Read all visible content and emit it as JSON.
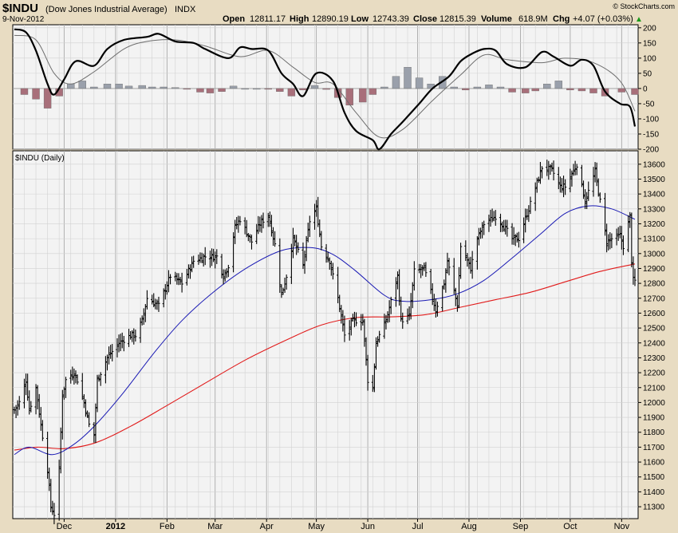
{
  "header": {
    "symbol": "$INDU",
    "name": "(Dow Jones Industrial Average)",
    "exchange": "INDX",
    "date": "9-Nov-2012",
    "open_label": "Open",
    "open": "12811.17",
    "high_label": "High",
    "high": "12890.19",
    "low_label": "Low",
    "low": "12743.39",
    "close_label": "Close",
    "close": "12815.39",
    "volume_label": "Volume",
    "volume": "618.9M",
    "chg_label": "Chg",
    "chg": "+4.07 (+0.03%)",
    "arrow": "▲",
    "watermark": "© StockCharts.com"
  },
  "colors": {
    "panel_bg": "#f3f3f3",
    "frame_bg": "#e8dcc2",
    "grid": "#d2d2d2",
    "price_bars": "#000000",
    "sma_short": "#1a1ab4",
    "sma_long": "#e11a1a",
    "macd_line": "#000000",
    "signal_line": "#6e6e6e",
    "hist_pos": "#9aa0ab",
    "hist_neg": "#a86f7a",
    "arrow": "#1a9a1a"
  },
  "chart_data": [
    {
      "type": "bar",
      "subtype": "macd-histogram-with-lines",
      "ylim": [
        -200,
        210
      ],
      "yticks": [
        200,
        150,
        100,
        50,
        0,
        -50,
        -100,
        -150,
        -200
      ],
      "histogram": [
        [
          "2011-11-07",
          -20
        ],
        [
          "2011-11-14",
          -35
        ],
        [
          "2011-11-21",
          -65
        ],
        [
          "2011-11-28",
          -25
        ],
        [
          "2011-12-05",
          15
        ],
        [
          "2011-12-12",
          25
        ],
        [
          "2011-12-19",
          5
        ],
        [
          "2011-12-27",
          15
        ],
        [
          "2012-01-03",
          15
        ],
        [
          "2012-01-09",
          8
        ],
        [
          "2012-01-17",
          10
        ],
        [
          "2012-01-23",
          5
        ],
        [
          "2012-01-30",
          5
        ],
        [
          "2012-02-06",
          3
        ],
        [
          "2012-02-13",
          -2
        ],
        [
          "2012-02-21",
          -12
        ],
        [
          "2012-02-27",
          -15
        ],
        [
          "2012-03-05",
          -10
        ],
        [
          "2012-03-12",
          8
        ],
        [
          "2012-03-19",
          0
        ],
        [
          "2012-03-26",
          0
        ],
        [
          "2012-04-02",
          -2
        ],
        [
          "2012-04-09",
          -10
        ],
        [
          "2012-04-16",
          -25
        ],
        [
          "2012-04-23",
          -5
        ],
        [
          "2012-04-30",
          10
        ],
        [
          "2012-05-07",
          -3
        ],
        [
          "2012-05-14",
          -30
        ],
        [
          "2012-05-21",
          -55
        ],
        [
          "2012-05-29",
          -45
        ],
        [
          "2012-06-04",
          -20
        ],
        [
          "2012-06-11",
          5
        ],
        [
          "2012-06-18",
          40
        ],
        [
          "2012-06-25",
          70
        ],
        [
          "2012-07-02",
          35
        ],
        [
          "2012-07-09",
          15
        ],
        [
          "2012-07-16",
          40
        ],
        [
          "2012-07-23",
          5
        ],
        [
          "2012-07-30",
          -5
        ],
        [
          "2012-08-06",
          5
        ],
        [
          "2012-08-13",
          12
        ],
        [
          "2012-08-20",
          5
        ],
        [
          "2012-08-27",
          -12
        ],
        [
          "2012-09-04",
          -15
        ],
        [
          "2012-09-10",
          -8
        ],
        [
          "2012-09-17",
          15
        ],
        [
          "2012-09-24",
          25
        ],
        [
          "2012-10-01",
          -5
        ],
        [
          "2012-10-08",
          -8
        ],
        [
          "2012-10-15",
          -15
        ],
        [
          "2012-10-22",
          -25
        ],
        [
          "2012-11-01",
          -12
        ],
        [
          "2012-11-09",
          -20
        ]
      ],
      "macd": [
        [
          "2011-11-01",
          195
        ],
        [
          "2011-11-08",
          185
        ],
        [
          "2011-11-14",
          125
        ],
        [
          "2011-11-21",
          15
        ],
        [
          "2011-11-25",
          -20
        ],
        [
          "2011-12-01",
          30
        ],
        [
          "2011-12-08",
          90
        ],
        [
          "2011-12-19",
          75
        ],
        [
          "2011-12-27",
          130
        ],
        [
          "2012-01-06",
          160
        ],
        [
          "2012-01-20",
          170
        ],
        [
          "2012-01-27",
          180
        ],
        [
          "2012-02-06",
          155
        ],
        [
          "2012-02-17",
          150
        ],
        [
          "2012-02-24",
          130
        ],
        [
          "2012-03-09",
          100
        ],
        [
          "2012-03-16",
          135
        ],
        [
          "2012-03-23",
          130
        ],
        [
          "2012-04-02",
          125
        ],
        [
          "2012-04-10",
          50
        ],
        [
          "2012-04-17",
          15
        ],
        [
          "2012-04-23",
          -25
        ],
        [
          "2012-05-01",
          50
        ],
        [
          "2012-05-11",
          25
        ],
        [
          "2012-05-18",
          -80
        ],
        [
          "2012-05-25",
          -140
        ],
        [
          "2012-06-04",
          -170
        ],
        [
          "2012-06-08",
          -200
        ],
        [
          "2012-06-15",
          -150
        ],
        [
          "2012-06-22",
          -110
        ],
        [
          "2012-07-02",
          -50
        ],
        [
          "2012-07-10",
          0
        ],
        [
          "2012-07-20",
          40
        ],
        [
          "2012-07-27",
          90
        ],
        [
          "2012-08-03",
          115
        ],
        [
          "2012-08-10",
          130
        ],
        [
          "2012-08-17",
          125
        ],
        [
          "2012-08-24",
          80
        ],
        [
          "2012-09-04",
          70
        ],
        [
          "2012-09-14",
          120
        ],
        [
          "2012-09-21",
          105
        ],
        [
          "2012-10-01",
          75
        ],
        [
          "2012-10-08",
          95
        ],
        [
          "2012-10-15",
          75
        ],
        [
          "2012-10-22",
          -10
        ],
        [
          "2012-10-31",
          -50
        ],
        [
          "2012-11-06",
          -60
        ],
        [
          "2012-11-09",
          -125
        ]
      ],
      "signal": [
        [
          "2011-11-01",
          175
        ],
        [
          "2011-11-14",
          160
        ],
        [
          "2011-11-25",
          50
        ],
        [
          "2011-12-05",
          15
        ],
        [
          "2011-12-19",
          55
        ],
        [
          "2012-01-06",
          130
        ],
        [
          "2012-01-20",
          155
        ],
        [
          "2012-02-06",
          160
        ],
        [
          "2012-02-24",
          140
        ],
        [
          "2012-03-16",
          105
        ],
        [
          "2012-04-02",
          125
        ],
        [
          "2012-04-17",
          70
        ],
        [
          "2012-04-30",
          20
        ],
        [
          "2012-05-11",
          15
        ],
        [
          "2012-05-25",
          -80
        ],
        [
          "2012-06-08",
          -160
        ],
        [
          "2012-06-22",
          -135
        ],
        [
          "2012-07-10",
          -40
        ],
        [
          "2012-07-27",
          45
        ],
        [
          "2012-08-10",
          110
        ],
        [
          "2012-08-24",
          95
        ],
        [
          "2012-09-14",
          85
        ],
        [
          "2012-09-28",
          100
        ],
        [
          "2012-10-15",
          85
        ],
        [
          "2012-10-31",
          25
        ],
        [
          "2012-11-09",
          -75
        ]
      ]
    },
    {
      "type": "line",
      "subtype": "ohlc-daily-with-moving-averages",
      "title": "$INDU (Daily)",
      "ylim": [
        11220,
        13690
      ],
      "yticks": [
        13600,
        13500,
        13400,
        13300,
        13200,
        13100,
        13000,
        12900,
        12800,
        12700,
        12600,
        12500,
        12400,
        12300,
        12200,
        12100,
        12000,
        11900,
        11800,
        11700,
        11600,
        11500,
        11400,
        11300
      ],
      "x_start": "2011-11-01",
      "x_end": "2012-11-09",
      "months": [
        [
          "Dec",
          "2011-12-01"
        ],
        [
          "2012",
          "2012-01-01"
        ],
        [
          "Feb",
          "2012-02-01"
        ],
        [
          "Mar",
          "2012-03-01"
        ],
        [
          "Apr",
          "2012-04-01"
        ],
        [
          "May",
          "2012-05-01"
        ],
        [
          "Jun",
          "2012-06-01"
        ],
        [
          "Jul",
          "2012-07-01"
        ],
        [
          "Aug",
          "2012-08-01"
        ],
        [
          "Sep",
          "2012-09-01"
        ],
        [
          "Oct",
          "2012-10-01"
        ],
        [
          "Nov",
          "2012-11-01"
        ]
      ],
      "price_path": [
        [
          "2011-11-01",
          11950
        ],
        [
          "2011-11-04",
          12000
        ],
        [
          "2011-11-08",
          12150
        ],
        [
          "2011-11-10",
          11950
        ],
        [
          "2011-11-14",
          12100
        ],
        [
          "2011-11-17",
          11850
        ],
        [
          "2011-11-21",
          11550
        ],
        [
          "2011-11-23",
          11300
        ],
        [
          "2011-11-25",
          11250
        ],
        [
          "2011-11-28",
          11550
        ],
        [
          "2011-11-30",
          12050
        ],
        [
          "2011-12-02",
          12150
        ],
        [
          "2011-12-07",
          12200
        ],
        [
          "2011-12-09",
          12150
        ],
        [
          "2011-12-13",
          12000
        ],
        [
          "2011-12-16",
          11850
        ],
        [
          "2011-12-19",
          11780
        ],
        [
          "2011-12-21",
          12150
        ],
        [
          "2011-12-27",
          12300
        ],
        [
          "2012-01-03",
          12400
        ],
        [
          "2012-01-10",
          12450
        ],
        [
          "2012-01-13",
          12450
        ],
        [
          "2012-01-17",
          12550
        ],
        [
          "2012-01-20",
          12700
        ],
        [
          "2012-01-27",
          12650
        ],
        [
          "2012-02-03",
          12850
        ],
        [
          "2012-02-10",
          12800
        ],
        [
          "2012-02-17",
          12950
        ],
        [
          "2012-02-24",
          12980
        ],
        [
          "2012-03-02",
          12980
        ],
        [
          "2012-03-06",
          12850
        ],
        [
          "2012-03-09",
          12920
        ],
        [
          "2012-03-13",
          13180
        ],
        [
          "2012-03-16",
          13230
        ],
        [
          "2012-03-23",
          13080
        ],
        [
          "2012-03-28",
          13200
        ],
        [
          "2012-04-02",
          13260
        ],
        [
          "2012-04-06",
          13060
        ],
        [
          "2012-04-10",
          12720
        ],
        [
          "2012-04-13",
          12850
        ],
        [
          "2012-04-17",
          13100
        ],
        [
          "2012-04-23",
          12920
        ],
        [
          "2012-04-27",
          13220
        ],
        [
          "2012-05-01",
          13300
        ],
        [
          "2012-05-04",
          13050
        ],
        [
          "2012-05-09",
          12950
        ],
        [
          "2012-05-14",
          12700
        ],
        [
          "2012-05-18",
          12450
        ],
        [
          "2012-05-23",
          12550
        ],
        [
          "2012-05-29",
          12550
        ],
        [
          "2012-06-01",
          12150
        ],
        [
          "2012-06-04",
          12100
        ],
        [
          "2012-06-06",
          12400
        ],
        [
          "2012-06-12",
          12550
        ],
        [
          "2012-06-19",
          12850
        ],
        [
          "2012-06-21",
          12550
        ],
        [
          "2012-06-26",
          12580
        ],
        [
          "2012-06-29",
          12880
        ],
        [
          "2012-07-05",
          12900
        ],
        [
          "2012-07-12",
          12620
        ],
        [
          "2012-07-17",
          12800
        ],
        [
          "2012-07-19",
          12950
        ],
        [
          "2012-07-25",
          12650
        ],
        [
          "2012-07-27",
          13050
        ],
        [
          "2012-08-02",
          12900
        ],
        [
          "2012-08-06",
          13100
        ],
        [
          "2012-08-10",
          13200
        ],
        [
          "2012-08-17",
          13250
        ],
        [
          "2012-08-21",
          13200
        ],
        [
          "2012-08-27",
          13100
        ],
        [
          "2012-08-31",
          13100
        ],
        [
          "2012-09-06",
          13300
        ],
        [
          "2012-09-14",
          13580
        ],
        [
          "2012-09-20",
          13560
        ],
        [
          "2012-09-25",
          13450
        ],
        [
          "2012-09-28",
          13450
        ],
        [
          "2012-10-05",
          13600
        ],
        [
          "2012-10-10",
          13350
        ],
        [
          "2012-10-16",
          13550
        ],
        [
          "2012-10-19",
          13350
        ],
        [
          "2012-10-23",
          13080
        ],
        [
          "2012-10-26",
          13100
        ],
        [
          "2012-10-31",
          13120
        ],
        [
          "2012-11-02",
          13050
        ],
        [
          "2012-11-06",
          13250
        ],
        [
          "2012-11-07",
          12950
        ],
        [
          "2012-11-08",
          12820
        ],
        [
          "2012-11-09",
          12815
        ]
      ],
      "series": [
        {
          "key": "sma_short",
          "points": [
            [
              "2011-11-01",
              11650
            ],
            [
              "2011-11-10",
              11700
            ],
            [
              "2011-11-24",
              11650
            ],
            [
              "2011-12-07",
              11720
            ],
            [
              "2011-12-20",
              11850
            ],
            [
              "2012-01-06",
              12070
            ],
            [
              "2012-01-24",
              12330
            ],
            [
              "2012-02-10",
              12550
            ],
            [
              "2012-03-01",
              12750
            ],
            [
              "2012-03-21",
              12910
            ],
            [
              "2012-04-10",
              13020
            ],
            [
              "2012-04-27",
              13040
            ],
            [
              "2012-05-10",
              13000
            ],
            [
              "2012-05-24",
              12890
            ],
            [
              "2012-06-11",
              12720
            ],
            [
              "2012-06-22",
              12680
            ],
            [
              "2012-07-09",
              12690
            ],
            [
              "2012-07-25",
              12730
            ],
            [
              "2012-08-10",
              12820
            ],
            [
              "2012-08-27",
              12970
            ],
            [
              "2012-09-13",
              13130
            ],
            [
              "2012-09-28",
              13270
            ],
            [
              "2012-10-12",
              13320
            ],
            [
              "2012-10-26",
              13300
            ],
            [
              "2012-11-09",
              13230
            ]
          ]
        },
        {
          "key": "sma_long",
          "points": [
            [
              "2011-11-01",
              11680
            ],
            [
              "2011-11-15",
              11700
            ],
            [
              "2011-12-01",
              11690
            ],
            [
              "2011-12-20",
              11730
            ],
            [
              "2012-01-10",
              11840
            ],
            [
              "2012-02-01",
              11980
            ],
            [
              "2012-02-24",
              12130
            ],
            [
              "2012-03-20",
              12290
            ],
            [
              "2012-04-13",
              12420
            ],
            [
              "2012-05-04",
              12520
            ],
            [
              "2012-05-25",
              12570
            ],
            [
              "2012-06-15",
              12575
            ],
            [
              "2012-07-06",
              12590
            ],
            [
              "2012-07-27",
              12640
            ],
            [
              "2012-08-17",
              12690
            ],
            [
              "2012-09-07",
              12740
            ],
            [
              "2012-09-28",
              12810
            ],
            [
              "2012-10-19",
              12880
            ],
            [
              "2012-11-09",
              12930
            ]
          ]
        }
      ]
    }
  ]
}
